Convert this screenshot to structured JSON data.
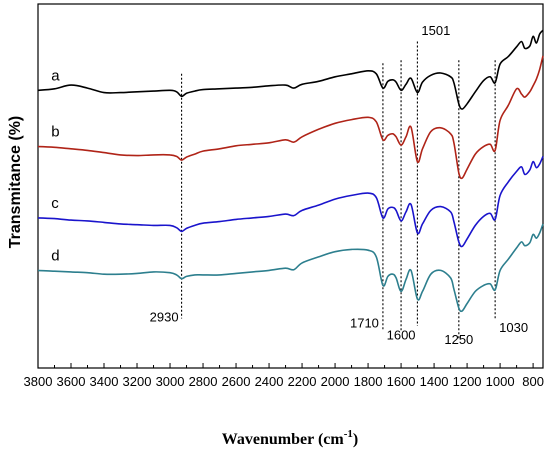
{
  "chart_data": {
    "type": "line",
    "xlabel": "Wavenumber (cm",
    "xlabel_sup": "-1",
    "xlabel_close": ")",
    "ylabel": "Transmitance (%)",
    "xlim": [
      3800,
      740
    ],
    "x_reversed": true,
    "x_ticks": [
      3800,
      3600,
      3400,
      3200,
      3000,
      2800,
      2600,
      2400,
      2200,
      2000,
      1800,
      1600,
      1400,
      1200,
      1000,
      800
    ],
    "x_tick_labels": [
      "3800",
      "3600",
      "3400",
      "3200",
      "3000",
      "2800",
      "2600",
      "2400",
      "2200",
      "2000",
      "1800",
      "1600",
      "1400",
      "1200",
      "1000",
      "800"
    ],
    "series": [
      {
        "name": "a",
        "color": "#000000",
        "label_x": 3720,
        "points": [
          [
            3800,
            100
          ],
          [
            3700,
            102
          ],
          [
            3600,
            107
          ],
          [
            3500,
            103
          ],
          [
            3400,
            97
          ],
          [
            3300,
            97
          ],
          [
            3200,
            98
          ],
          [
            3100,
            99
          ],
          [
            3000,
            100
          ],
          [
            2960,
            98
          ],
          [
            2930,
            92
          ],
          [
            2900,
            96
          ],
          [
            2850,
            99
          ],
          [
            2800,
            101
          ],
          [
            2700,
            102
          ],
          [
            2600,
            103
          ],
          [
            2500,
            104
          ],
          [
            2400,
            106
          ],
          [
            2300,
            107
          ],
          [
            2250,
            103
          ],
          [
            2200,
            108
          ],
          [
            2100,
            112
          ],
          [
            2000,
            118
          ],
          [
            1900,
            122
          ],
          [
            1800,
            126
          ],
          [
            1750,
            122
          ],
          [
            1710,
            103
          ],
          [
            1680,
            112
          ],
          [
            1650,
            114
          ],
          [
            1630,
            111
          ],
          [
            1600,
            100
          ],
          [
            1570,
            108
          ],
          [
            1540,
            116
          ],
          [
            1501,
            97
          ],
          [
            1470,
            111
          ],
          [
            1420,
            120
          ],
          [
            1360,
            123
          ],
          [
            1300,
            118
          ],
          [
            1280,
            110
          ],
          [
            1250,
            82
          ],
          [
            1230,
            75
          ],
          [
            1200,
            82
          ],
          [
            1150,
            98
          ],
          [
            1100,
            113
          ],
          [
            1060,
            118
          ],
          [
            1030,
            110
          ],
          [
            1000,
            135
          ],
          [
            950,
            145
          ],
          [
            900,
            158
          ],
          [
            870,
            165
          ],
          [
            850,
            156
          ],
          [
            820,
            159
          ],
          [
            800,
            172
          ],
          [
            780,
            163
          ],
          [
            760,
            175
          ],
          [
            740,
            180
          ]
        ]
      },
      {
        "name": "b",
        "color": "#b02418",
        "label_x": 3720,
        "points": [
          [
            3800,
            25
          ],
          [
            3700,
            24
          ],
          [
            3600,
            22
          ],
          [
            3500,
            20
          ],
          [
            3400,
            17
          ],
          [
            3300,
            14
          ],
          [
            3200,
            13
          ],
          [
            3100,
            14
          ],
          [
            3000,
            14
          ],
          [
            2960,
            12
          ],
          [
            2930,
            7
          ],
          [
            2900,
            11
          ],
          [
            2850,
            15
          ],
          [
            2800,
            19
          ],
          [
            2700,
            22
          ],
          [
            2600,
            26
          ],
          [
            2500,
            28
          ],
          [
            2400,
            30
          ],
          [
            2300,
            34
          ],
          [
            2250,
            31
          ],
          [
            2200,
            38
          ],
          [
            2100,
            48
          ],
          [
            2000,
            56
          ],
          [
            1900,
            61
          ],
          [
            1800,
            64
          ],
          [
            1750,
            58
          ],
          [
            1710,
            34
          ],
          [
            1680,
            40
          ],
          [
            1650,
            42
          ],
          [
            1630,
            38
          ],
          [
            1600,
            27
          ],
          [
            1570,
            38
          ],
          [
            1540,
            51
          ],
          [
            1501,
            5
          ],
          [
            1470,
            22
          ],
          [
            1420,
            45
          ],
          [
            1360,
            50
          ],
          [
            1300,
            42
          ],
          [
            1280,
            30
          ],
          [
            1250,
            -10
          ],
          [
            1230,
            -17
          ],
          [
            1200,
            -5
          ],
          [
            1150,
            15
          ],
          [
            1100,
            25
          ],
          [
            1060,
            28
          ],
          [
            1030,
            20
          ],
          [
            1000,
            60
          ],
          [
            950,
            80
          ],
          [
            900,
            102
          ],
          [
            870,
            95
          ],
          [
            850,
            91
          ],
          [
            820,
            98
          ],
          [
            800,
            106
          ],
          [
            780,
            115
          ],
          [
            760,
            128
          ],
          [
            740,
            146
          ]
        ]
      },
      {
        "name": "c",
        "color": "#1a14cc",
        "label_x": 3720,
        "points": [
          [
            3800,
            -70
          ],
          [
            3700,
            -71
          ],
          [
            3600,
            -73
          ],
          [
            3500,
            -74
          ],
          [
            3400,
            -76
          ],
          [
            3300,
            -78
          ],
          [
            3200,
            -79
          ],
          [
            3100,
            -80
          ],
          [
            3000,
            -80
          ],
          [
            2960,
            -83
          ],
          [
            2930,
            -88
          ],
          [
            2900,
            -84
          ],
          [
            2850,
            -80
          ],
          [
            2800,
            -77
          ],
          [
            2700,
            -75
          ],
          [
            2600,
            -72
          ],
          [
            2500,
            -70
          ],
          [
            2400,
            -68
          ],
          [
            2300,
            -65
          ],
          [
            2250,
            -67
          ],
          [
            2200,
            -60
          ],
          [
            2100,
            -53
          ],
          [
            2000,
            -45
          ],
          [
            1900,
            -40
          ],
          [
            1800,
            -37
          ],
          [
            1750,
            -43
          ],
          [
            1710,
            -70
          ],
          [
            1680,
            -58
          ],
          [
            1650,
            -56
          ],
          [
            1630,
            -60
          ],
          [
            1600,
            -74
          ],
          [
            1570,
            -62
          ],
          [
            1540,
            -52
          ],
          [
            1501,
            -90
          ],
          [
            1470,
            -78
          ],
          [
            1420,
            -60
          ],
          [
            1360,
            -55
          ],
          [
            1300,
            -62
          ],
          [
            1280,
            -75
          ],
          [
            1250,
            -102
          ],
          [
            1230,
            -108
          ],
          [
            1200,
            -98
          ],
          [
            1150,
            -80
          ],
          [
            1100,
            -68
          ],
          [
            1060,
            -64
          ],
          [
            1030,
            -72
          ],
          [
            1000,
            -40
          ],
          [
            950,
            -22
          ],
          [
            900,
            -8
          ],
          [
            870,
            -2
          ],
          [
            850,
            -12
          ],
          [
            820,
            -6
          ],
          [
            800,
            5
          ],
          [
            780,
            -3
          ],
          [
            760,
            2
          ],
          [
            740,
            12
          ]
        ]
      },
      {
        "name": "d",
        "color": "#2d7f8e",
        "label_x": 3720,
        "points": [
          [
            3800,
            -140
          ],
          [
            3700,
            -141
          ],
          [
            3600,
            -142
          ],
          [
            3500,
            -143
          ],
          [
            3400,
            -145
          ],
          [
            3300,
            -145
          ],
          [
            3200,
            -144
          ],
          [
            3100,
            -142
          ],
          [
            3000,
            -143
          ],
          [
            2960,
            -146
          ],
          [
            2930,
            -151
          ],
          [
            2900,
            -148
          ],
          [
            2850,
            -146
          ],
          [
            2800,
            -146
          ],
          [
            2700,
            -146
          ],
          [
            2600,
            -144
          ],
          [
            2500,
            -142
          ],
          [
            2400,
            -140
          ],
          [
            2300,
            -137
          ],
          [
            2250,
            -139
          ],
          [
            2200,
            -130
          ],
          [
            2100,
            -122
          ],
          [
            2000,
            -115
          ],
          [
            1900,
            -112
          ],
          [
            1800,
            -113
          ],
          [
            1750,
            -122
          ],
          [
            1710,
            -160
          ],
          [
            1680,
            -148
          ],
          [
            1650,
            -145
          ],
          [
            1630,
            -150
          ],
          [
            1600,
            -168
          ],
          [
            1570,
            -152
          ],
          [
            1540,
            -140
          ],
          [
            1501,
            -178
          ],
          [
            1470,
            -168
          ],
          [
            1420,
            -145
          ],
          [
            1360,
            -140
          ],
          [
            1300,
            -150
          ],
          [
            1280,
            -165
          ],
          [
            1250,
            -190
          ],
          [
            1230,
            -194
          ],
          [
            1200,
            -184
          ],
          [
            1150,
            -168
          ],
          [
            1100,
            -160
          ],
          [
            1060,
            -158
          ],
          [
            1030,
            -166
          ],
          [
            1000,
            -140
          ],
          [
            950,
            -125
          ],
          [
            900,
            -110
          ],
          [
            870,
            -102
          ],
          [
            850,
            -107
          ],
          [
            820,
            -103
          ],
          [
            800,
            -92
          ],
          [
            780,
            -97
          ],
          [
            760,
            -90
          ],
          [
            740,
            -78
          ]
        ]
      }
    ],
    "annotations": [
      {
        "wavenumber": 2930,
        "label": "2930",
        "line_from_y": 122,
        "line_to_y": -204,
        "label_x": 2930,
        "label_y": -208,
        "anchor": "end",
        "label_dx": -3
      },
      {
        "wavenumber": 1710,
        "label": "1710",
        "line_from_y": 136,
        "line_to_y": -220,
        "label_x": 1710,
        "label_y": -216,
        "anchor": "end",
        "label_dx": -4
      },
      {
        "wavenumber": 1600,
        "label": "1600",
        "line_from_y": 140,
        "line_to_y": -222,
        "label_x": 1600,
        "label_y": -232,
        "anchor": "middle",
        "label_dx": 0
      },
      {
        "wavenumber": 1501,
        "label": "1501",
        "line_from_y": 165,
        "line_to_y": -214,
        "label_x": 1501,
        "label_y": 174,
        "anchor": "start",
        "label_dx": 4
      },
      {
        "wavenumber": 1250,
        "label": "1250",
        "line_from_y": 140,
        "line_to_y": -232,
        "label_x": 1250,
        "label_y": -238,
        "anchor": "middle",
        "label_dx": 0
      },
      {
        "wavenumber": 1030,
        "label": "1030",
        "line_from_y": 140,
        "line_to_y": -205,
        "label_x": 1030,
        "label_y": -222,
        "anchor": "start",
        "label_dx": 4
      }
    ],
    "ylim": [
      -270,
      215
    ],
    "grid": false,
    "legend": "none"
  }
}
